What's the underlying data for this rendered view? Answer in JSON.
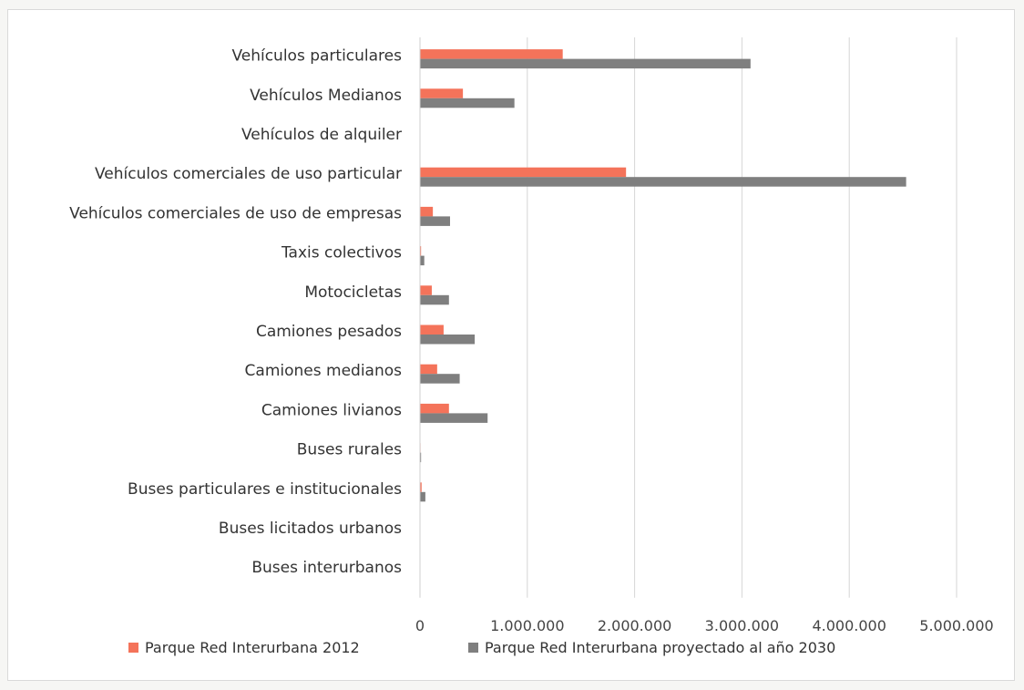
{
  "chart_data": {
    "type": "bar",
    "orientation": "horizontal",
    "categories": [
      "Vehículos particulares",
      "Vehículos Medianos",
      "Vehículos de alquiler",
      "Vehículos comerciales de uso particular",
      "Vehículos comerciales de uso de empresas",
      "Taxis colectivos",
      "Motocicletas",
      "Camiones pesados",
      "Camiones medianos",
      "Camiones livianos",
      "Buses rurales",
      "Buses particulares e institucionales",
      "Buses licitados urbanos",
      "Buses interurbanos"
    ],
    "series": [
      {
        "name": "Parque Red Interurbana 2012",
        "color": "#f4735a",
        "values": [
          1330000,
          400000,
          0,
          1920000,
          120000,
          10000,
          110000,
          220000,
          160000,
          270000,
          5000,
          15000,
          0,
          0
        ]
      },
      {
        "name": "Parque Red Interurbana proyectado al año 2030",
        "color": "#7f7f7f",
        "values": [
          3080000,
          880000,
          0,
          4530000,
          280000,
          40000,
          270000,
          510000,
          370000,
          630000,
          10000,
          50000,
          0,
          0
        ]
      }
    ],
    "xlim": [
      0,
      5000000
    ],
    "x_ticks": [
      0,
      1000000,
      2000000,
      3000000,
      4000000,
      5000000
    ],
    "x_tick_labels": [
      "0",
      "1.000.000",
      "2.000.000",
      "3.000.000",
      "4.000.000",
      "5.000.000"
    ],
    "grid": "vertical",
    "legend_position": "bottom"
  }
}
